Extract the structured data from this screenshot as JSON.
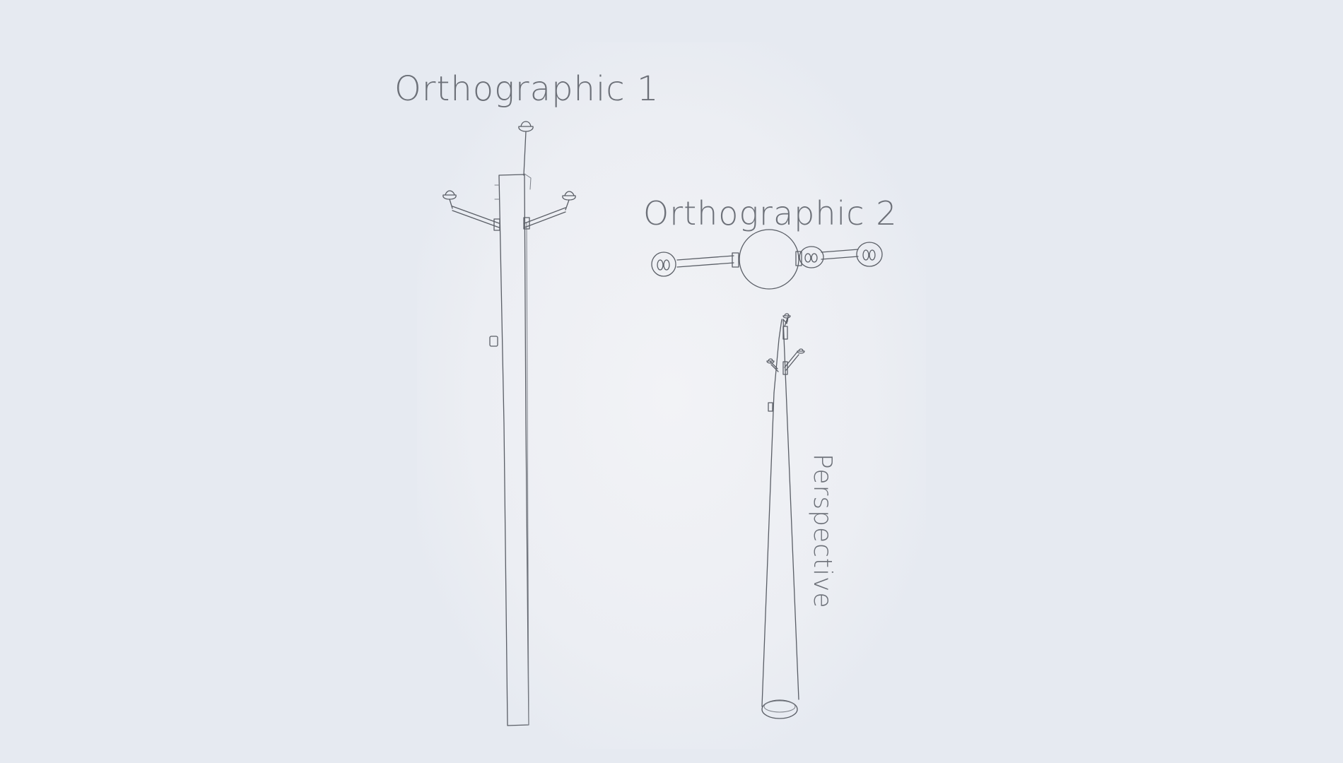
{
  "labels": {
    "ortho1": "Orthographic 1",
    "ortho2": "Orthographic 2",
    "perspective": "Perspective"
  },
  "colors": {
    "background": "#e6eaf1",
    "paper": "#f1f2f5",
    "pencil": "#5a5e66"
  }
}
